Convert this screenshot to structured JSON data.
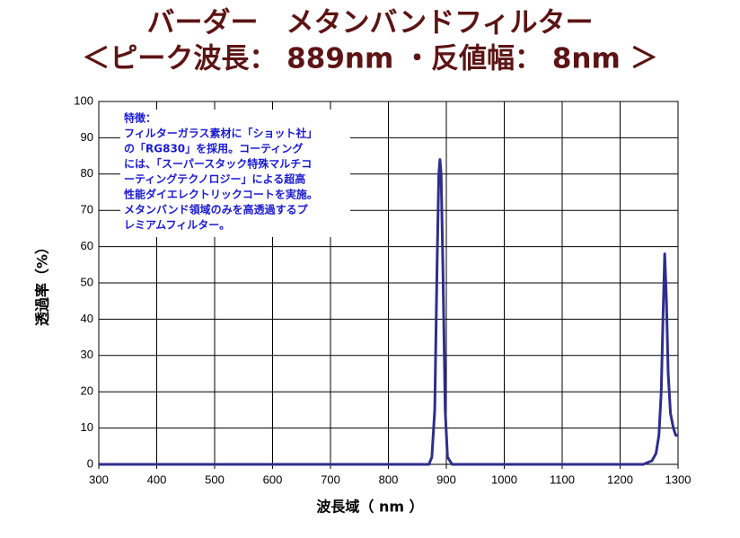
{
  "chart_data": {
    "type": "line",
    "title": "バーダー　メタンバンドフィルター",
    "subtitle": "＜ピーク波長： 889nm ・反値幅： 8nm ＞",
    "x_label": "波長域（ nm ）",
    "y_label": "透過率（%）",
    "annotation": [
      "特徴：",
      "フィルターガラス素材に「ショット社」",
      "の「RG830」を採用。コーティング",
      "には、「スーパースタック特殊マルチコ",
      "ーティングテクノロジー」による超高",
      "性能ダイエレクトリックコートを実施。",
      "メタンバンド領域のみを高透過するプ",
      "レミアムフィルター。"
    ],
    "x": [
      300,
      850,
      870,
      875,
      880,
      884,
      887,
      889,
      891,
      894,
      898,
      902,
      910,
      1240,
      1255,
      1262,
      1267,
      1271,
      1274,
      1277,
      1280,
      1283,
      1287,
      1292,
      1296,
      1300
    ],
    "series": [
      {
        "color": "#2e2e8c",
        "values": [
          0,
          0,
          0,
          2,
          15,
          55,
          80,
          84,
          80,
          55,
          15,
          2,
          0,
          0,
          1,
          3,
          8,
          20,
          40,
          58,
          45,
          25,
          14,
          10,
          8,
          8
        ]
      }
    ],
    "xlim": [
      300,
      1300
    ],
    "xticks": [
      300,
      400,
      500,
      600,
      700,
      800,
      900,
      1000,
      1100,
      1200,
      1300
    ],
    "ylim": [
      0,
      100
    ],
    "yticks": [
      0,
      10,
      20,
      30,
      40,
      50,
      60,
      70,
      80,
      90,
      100
    ],
    "grid": true
  }
}
